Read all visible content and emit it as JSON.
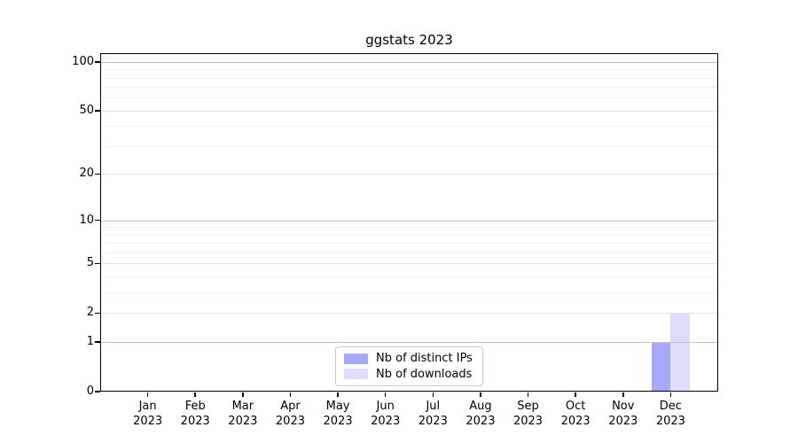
{
  "title": "ggstats 2023",
  "chart_data": {
    "type": "bar",
    "title": "ggstats 2023",
    "categories": [
      "Jan 2023",
      "Feb 2023",
      "Mar 2023",
      "Apr 2023",
      "May 2023",
      "Jun 2023",
      "Jul 2023",
      "Aug 2023",
      "Sep 2023",
      "Oct 2023",
      "Nov 2023",
      "Dec 2023"
    ],
    "series": [
      {
        "name": "Nb of distinct IPs",
        "color": "#a8a8f8",
        "values": [
          0,
          0,
          0,
          0,
          0,
          0,
          0,
          0,
          0,
          0,
          0,
          1
        ]
      },
      {
        "name": "Nb of downloads",
        "color": "#dddcfa",
        "values": [
          0,
          0,
          0,
          0,
          0,
          0,
          0,
          0,
          0,
          0,
          0,
          2
        ]
      }
    ],
    "xlabel": "",
    "ylabel": "",
    "yscale": "log1p",
    "ylim": [
      0,
      113
    ],
    "yticks": [
      0,
      1,
      2,
      5,
      10,
      20,
      50,
      100
    ],
    "yticks_minor": [
      3,
      4,
      6,
      7,
      8,
      9,
      30,
      40,
      60,
      70,
      80,
      90
    ],
    "decade_ticks": [
      1,
      10,
      100
    ],
    "grid": "horizontal",
    "grid_above_bars": true,
    "legend_position": "bottom-center",
    "colors": {
      "axis": "#000000",
      "grid_major": "#c3c3c3",
      "grid_mid": "#e2e2e2",
      "grid_minor": "#f2f2f2",
      "legend_border": "#cccccc",
      "background": "#ffffff"
    }
  }
}
